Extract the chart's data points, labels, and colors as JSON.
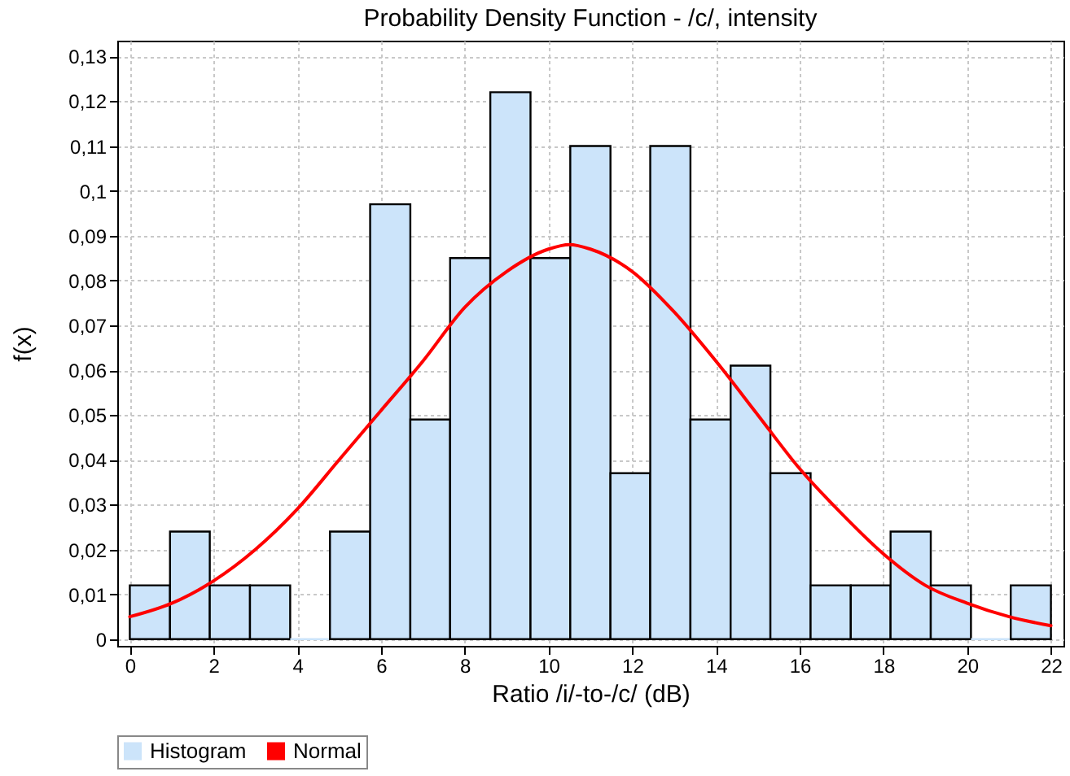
{
  "chart_data": {
    "type": "histogram",
    "title": "Probability Density Function - /c/, intensity",
    "xlabel": "Ratio /i/-to-/c/ (dB)",
    "ylabel": "f(x)",
    "series": [
      {
        "name": "Histogram",
        "type": "histogram",
        "color": "#cce4fa",
        "bins": [
          0,
          0.96,
          1.91,
          2.87,
          3.83,
          4.78,
          5.74,
          6.7,
          7.65,
          8.61,
          9.57,
          10.52,
          11.48,
          12.43,
          13.39,
          14.35,
          15.3,
          16.26,
          17.22,
          18.17,
          19.13,
          20.09,
          21.04,
          22
        ],
        "values": [
          0.012,
          0.024,
          0.012,
          0.012,
          0,
          0.024,
          0.097,
          0.049,
          0.085,
          0.122,
          0.085,
          0.11,
          0.037,
          0.11,
          0.049,
          0.061,
          0.037,
          0.012,
          0.012,
          0.024,
          0.012,
          0,
          0.012
        ]
      },
      {
        "name": "Normal",
        "type": "line",
        "color": "#ff0000",
        "x": [
          0,
          1,
          2,
          3,
          4,
          5,
          6,
          7,
          8,
          9,
          10,
          10.5,
          11,
          12,
          13,
          14,
          15,
          16,
          17,
          18,
          19,
          20,
          21,
          22
        ],
        "values": [
          0.005,
          0.008,
          0.013,
          0.02,
          0.029,
          0.04,
          0.051,
          0.062,
          0.074,
          0.082,
          0.087,
          0.088,
          0.087,
          0.082,
          0.073,
          0.062,
          0.05,
          0.038,
          0.028,
          0.019,
          0.012,
          0.008,
          0.005,
          0.003
        ]
      }
    ],
    "xlim": [
      -0.3,
      22.3
    ],
    "xticks": [
      0,
      2,
      4,
      6,
      8,
      10,
      12,
      14,
      16,
      18,
      20,
      22
    ],
    "ylim": [
      -0.0015,
      0.1335
    ],
    "yticks": [
      0,
      {
        "value": 0.01,
        "label": "0,01"
      },
      {
        "value": 0.02,
        "label": "0,02"
      },
      {
        "value": 0.03,
        "label": "0,03"
      },
      {
        "value": 0.04,
        "label": "0,04"
      },
      {
        "value": 0.05,
        "label": "0,05"
      },
      {
        "value": 0.06,
        "label": "0,06"
      },
      {
        "value": 0.07,
        "label": "0,07"
      },
      {
        "value": 0.08,
        "label": "0,08"
      },
      {
        "value": 0.09,
        "label": "0,09"
      },
      {
        "value": 0.1,
        "label": "0,1"
      },
      {
        "value": 0.11,
        "label": "0,11"
      },
      {
        "value": 0.12,
        "label": "0,12"
      },
      {
        "value": 0.13,
        "label": "0,13"
      }
    ],
    "grid": true,
    "legend": "bottom",
    "line_style": "solid",
    "marker": "none"
  }
}
